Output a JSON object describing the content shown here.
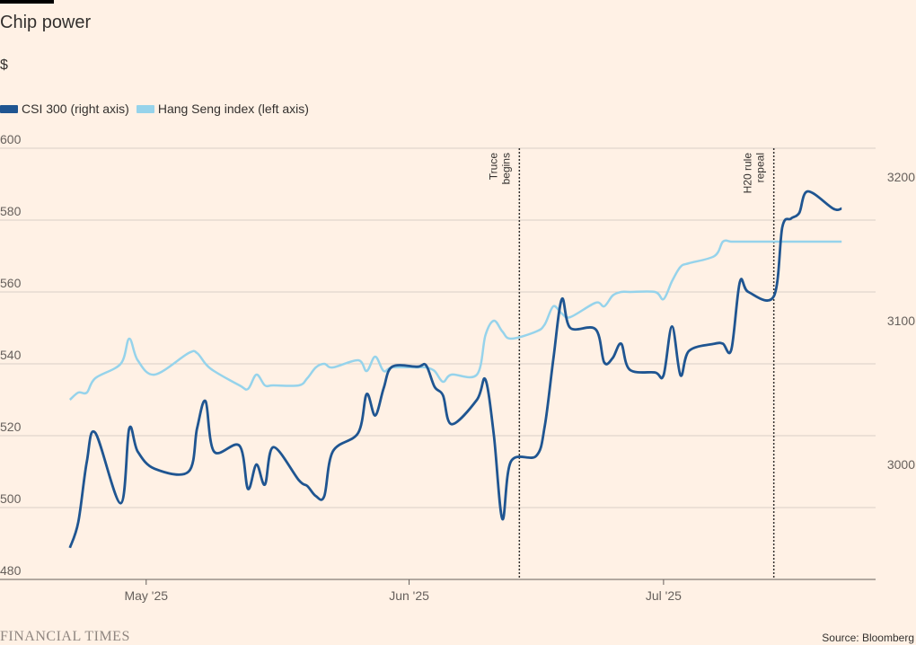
{
  "title": "Chip power",
  "unit": "$",
  "footer": {
    "logo": "FINANCIAL TIMES",
    "source": "Source: Bloomberg"
  },
  "colors": {
    "csi": "#1f5591",
    "hsi": "#96d3eb",
    "grid": "#d9cfc6",
    "background": "#fff1e5"
  },
  "chart_data": {
    "type": "line",
    "title": "Chip power",
    "ylabel": "$",
    "legend_position": "top-left",
    "grid": true,
    "x_ticks": [
      "May '25",
      "Jun '25",
      "Jul '25"
    ],
    "x_tick_dates": [
      "2025-05-01",
      "2025-06-01",
      "2025-07-01"
    ],
    "y_left": {
      "lim": [
        480,
        600
      ],
      "ticks": [
        480,
        500,
        520,
        540,
        560,
        580,
        600
      ]
    },
    "y_right": {
      "lim": [
        2920,
        3220
      ],
      "ticks": [
        3000,
        3100,
        3200
      ]
    },
    "annotations": [
      {
        "date": "2025-06-14",
        "lines": [
          "Truce",
          "begins"
        ]
      },
      {
        "date": "2025-07-14",
        "lines": [
          "H20 rule",
          "repeal"
        ]
      }
    ],
    "series": [
      {
        "name": "CSI 300 (right axis)",
        "axis": "right",
        "x": [
          "2025-04-22",
          "2025-04-23",
          "2025-04-24",
          "2025-04-25",
          "2025-04-28",
          "2025-04-29",
          "2025-04-30",
          "2025-05-02",
          "2025-05-06",
          "2025-05-07",
          "2025-05-08",
          "2025-05-09",
          "2025-05-12",
          "2025-05-13",
          "2025-05-14",
          "2025-05-15",
          "2025-05-16",
          "2025-05-19",
          "2025-05-20",
          "2025-05-21",
          "2025-05-22",
          "2025-05-23",
          "2025-05-26",
          "2025-05-27",
          "2025-05-28",
          "2025-05-29",
          "2025-05-30",
          "2025-06-02",
          "2025-06-03",
          "2025-06-04",
          "2025-06-05",
          "2025-06-06",
          "2025-06-09",
          "2025-06-10",
          "2025-06-11",
          "2025-06-12",
          "2025-06-13",
          "2025-06-16",
          "2025-06-17",
          "2025-06-18",
          "2025-06-19",
          "2025-06-20",
          "2025-06-23",
          "2025-06-24",
          "2025-06-25",
          "2025-06-26",
          "2025-06-27",
          "2025-06-30",
          "2025-07-01",
          "2025-07-02",
          "2025-07-03",
          "2025-07-04",
          "2025-07-07",
          "2025-07-08",
          "2025-07-09",
          "2025-07-10",
          "2025-07-11",
          "2025-07-14",
          "2025-07-15",
          "2025-07-16",
          "2025-07-17",
          "2025-07-18",
          "2025-07-21",
          "2025-07-22"
        ],
        "values": [
          2942,
          2960,
          3002,
          3022,
          2973,
          3025,
          3009,
          2997,
          2995,
          3025,
          3044,
          3009,
          3013,
          2983,
          3000,
          2986,
          3012,
          2989,
          2985,
          2978,
          2978,
          3009,
          3022,
          3049,
          3034,
          3053,
          3068,
          3068,
          3069,
          3054,
          3048,
          3028,
          3045,
          3059,
          3020,
          2962,
          3002,
          3006,
          3027,
          3073,
          3115,
          3095,
          3094,
          3071,
          3074,
          3084,
          3066,
          3064,
          3062,
          3096,
          3062,
          3079,
          3084,
          3084,
          3080,
          3127,
          3120,
          3117,
          3165,
          3171,
          3175,
          3190,
          3178,
          3178
        ]
      },
      {
        "name": "Hang Seng index (left axis)",
        "axis": "left",
        "x": [
          "2025-04-22",
          "2025-04-23",
          "2025-04-24",
          "2025-04-25",
          "2025-04-28",
          "2025-04-29",
          "2025-04-30",
          "2025-05-02",
          "2025-05-06",
          "2025-05-07",
          "2025-05-08",
          "2025-05-09",
          "2025-05-12",
          "2025-05-13",
          "2025-05-14",
          "2025-05-15",
          "2025-05-16",
          "2025-05-19",
          "2025-05-20",
          "2025-05-21",
          "2025-05-22",
          "2025-05-23",
          "2025-05-26",
          "2025-05-27",
          "2025-05-28",
          "2025-05-29",
          "2025-05-30",
          "2025-06-02",
          "2025-06-03",
          "2025-06-04",
          "2025-06-05",
          "2025-06-06",
          "2025-06-09",
          "2025-06-10",
          "2025-06-11",
          "2025-06-12",
          "2025-06-13",
          "2025-06-16",
          "2025-06-17",
          "2025-06-18",
          "2025-06-19",
          "2025-06-20",
          "2025-06-23",
          "2025-06-24",
          "2025-06-25",
          "2025-06-26",
          "2025-06-27",
          "2025-06-30",
          "2025-07-01",
          "2025-07-02",
          "2025-07-03",
          "2025-07-04",
          "2025-07-07",
          "2025-07-08",
          "2025-07-09",
          "2025-07-10",
          "2025-07-11",
          "2025-07-14",
          "2025-07-15",
          "2025-07-16",
          "2025-07-17",
          "2025-07-18",
          "2025-07-21",
          "2025-07-22"
        ],
        "values": [
          530,
          532,
          532,
          536,
          540,
          547,
          541,
          537,
          543,
          543,
          540,
          538,
          534,
          533,
          537,
          534,
          534,
          534,
          536,
          539,
          540,
          539,
          541,
          538,
          542,
          538,
          539,
          539,
          539,
          538,
          535,
          537,
          537,
          548,
          552,
          549,
          547,
          549,
          551,
          556,
          554,
          553,
          557,
          556,
          559,
          560,
          560,
          560,
          558,
          563,
          567,
          568,
          570,
          574,
          574,
          574,
          574,
          574,
          574,
          574,
          574,
          574,
          574,
          574
        ]
      }
    ]
  }
}
